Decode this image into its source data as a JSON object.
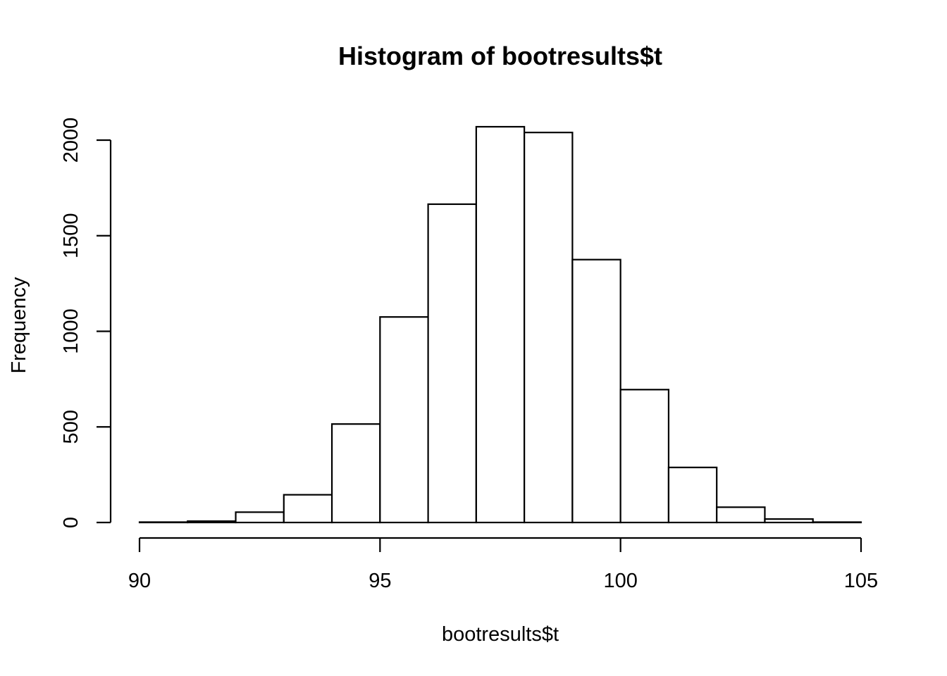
{
  "chart_data": {
    "type": "bar",
    "title": "Histogram of bootresults$t",
    "xlabel": "bootresults$t",
    "ylabel": "Frequency",
    "bin_edges": [
      90,
      91,
      92,
      93,
      94,
      95,
      96,
      97,
      98,
      99,
      100,
      101,
      102,
      103,
      104,
      105
    ],
    "values": [
      2,
      7,
      54,
      145,
      515,
      1075,
      1665,
      2070,
      2040,
      1375,
      695,
      288,
      80,
      18,
      2
    ],
    "xlim": [
      90,
      105
    ],
    "ylim": [
      0,
      2070
    ],
    "x_ticks": [
      90,
      95,
      100,
      105
    ],
    "y_ticks": [
      0,
      500,
      1000,
      1500,
      2000
    ],
    "grid": false,
    "colors": {
      "bar_fill": "#ffffff",
      "bar_stroke": "#000000"
    }
  }
}
